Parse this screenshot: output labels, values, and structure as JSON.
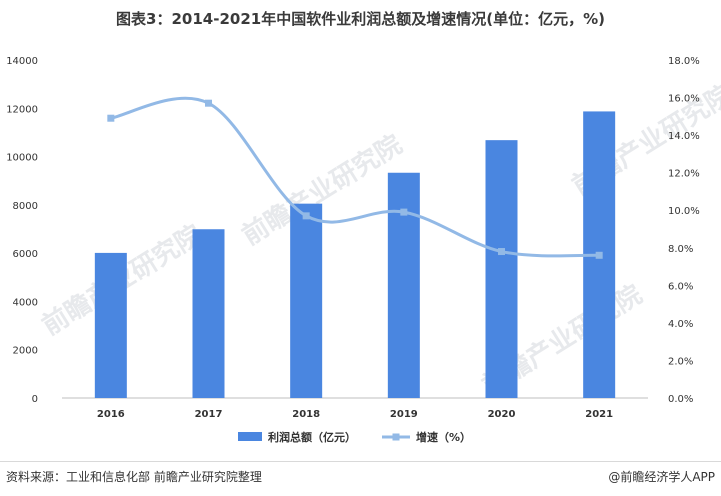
{
  "title": "图表3：2014-2021年中国软件业利润总额及增速情况(单位：亿元，%)",
  "watermark_text": "前瞻产业研究院",
  "footer": {
    "source": "资料来源：工业和信息化部 前瞻产业研究院整理",
    "brand": "@前瞻经济学人APP"
  },
  "colors": {
    "bar": "#4a86e0",
    "line": "#92b9e6",
    "axis_text": "#333333"
  },
  "chart_data": {
    "type": "bar",
    "categories": [
      "2016",
      "2017",
      "2018",
      "2019",
      "2020",
      "2021"
    ],
    "series": [
      {
        "name": "利润总额（亿元）",
        "type": "bar",
        "axis": "left",
        "values": [
          6010,
          6990,
          8050,
          9330,
          10680,
          11870
        ]
      },
      {
        "name": "增速（%）",
        "type": "line",
        "axis": "right",
        "smooth": true,
        "marker": "square",
        "values": [
          14.9,
          15.7,
          9.7,
          9.9,
          7.8,
          7.6
        ]
      }
    ],
    "y_left": {
      "min": 0,
      "max": 14000,
      "step": 2000,
      "ticks": [
        "0",
        "2000",
        "4000",
        "6000",
        "8000",
        "10000",
        "12000",
        "14000"
      ]
    },
    "y_right": {
      "min": 0,
      "max": 18,
      "step": 2,
      "ticks": [
        "0.0%",
        "2.0%",
        "4.0%",
        "6.0%",
        "8.0%",
        "10.0%",
        "12.0%",
        "14.0%",
        "16.0%",
        "18.0%"
      ]
    },
    "grid": false,
    "legend_position": "bottom"
  }
}
